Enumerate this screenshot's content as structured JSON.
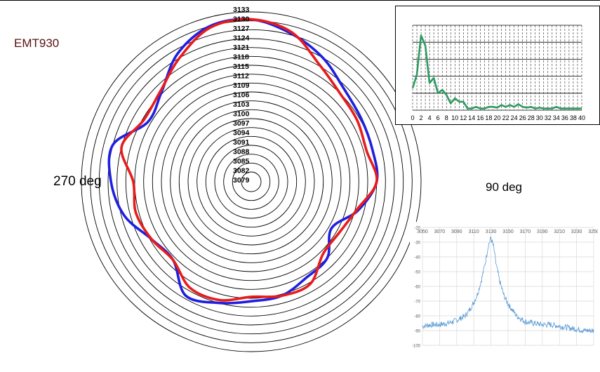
{
  "labels": {
    "model": "EMT930",
    "left_angle": "270 deg",
    "right_angle": "90 deg"
  },
  "colors": {
    "series_blue": "#1f1fe0",
    "series_red": "#e81c1c",
    "inset_top_line": "#2e9a62",
    "inset_bottom_line": "#5b9bd5"
  },
  "chart_data": [
    {
      "type": "line",
      "subtype": "polar",
      "ring_labels": [
        "3133",
        "3130",
        "3127",
        "3124",
        "3121",
        "3118",
        "3115",
        "3112",
        "3109",
        "3106",
        "3103",
        "3100",
        "3097",
        "3094",
        "3091",
        "3088",
        "3085",
        "3082",
        "3079"
      ],
      "r_range": [
        3079,
        3133
      ],
      "angle_labels": [
        {
          "text": "270 deg",
          "angle_deg": 270
        },
        {
          "text": "90 deg",
          "angle_deg": 90
        }
      ],
      "grid": true,
      "series": [
        {
          "color": "#1f1fe0",
          "angle_deg": [
            0,
            15,
            30,
            45,
            60,
            75,
            90,
            105,
            120,
            135,
            150,
            165,
            180,
            195,
            210,
            225,
            240,
            255,
            270,
            285,
            300,
            315,
            330,
            345
          ],
          "r": [
            3130.5,
            3127.5,
            3124,
            3120,
            3118.5,
            3118,
            3118,
            3113,
            3107,
            3112,
            3113,
            3115.5,
            3116,
            3118,
            3120,
            3113,
            3114.5,
            3120,
            3123,
            3124,
            3116,
            3118.5,
            3125.5,
            3130
          ]
        },
        {
          "color": "#e81c1c",
          "angle_deg": [
            0,
            15,
            30,
            45,
            60,
            75,
            90,
            105,
            120,
            135,
            150,
            165,
            180,
            195,
            210,
            225,
            240,
            255,
            270,
            285,
            300,
            315,
            330,
            345
          ],
          "r": [
            3130.5,
            3128,
            3121.5,
            3118,
            3117,
            3116,
            3118,
            3112.5,
            3110,
            3110,
            3115.5,
            3115.5,
            3114.5,
            3117,
            3117,
            3113,
            3114.5,
            3116,
            3115.5,
            3121,
            3117.5,
            3119,
            3124,
            3129.5
          ]
        }
      ]
    },
    {
      "type": "line",
      "x_ticks": [
        "0",
        "2",
        "4",
        "6",
        "8",
        "10",
        "12",
        "14",
        "16",
        "18",
        "20",
        "22",
        "24",
        "26",
        "28",
        "30",
        "32",
        "34",
        "36",
        "38",
        "40"
      ],
      "xlim": [
        0,
        40
      ],
      "ylim": [
        0,
        5
      ],
      "grid": true,
      "series": [
        {
          "color": "#2e9a62",
          "x": [
            0,
            1,
            2,
            3,
            4,
            5,
            6,
            7,
            8,
            9,
            10,
            11,
            12,
            13,
            14,
            15,
            16,
            17,
            18,
            19,
            20,
            21,
            22,
            23,
            24,
            25,
            26,
            27,
            28,
            29,
            30,
            31,
            32,
            33,
            34,
            35,
            36,
            37,
            38,
            39,
            40
          ],
          "y": [
            1.3,
            2.1,
            4.4,
            3.8,
            1.6,
            1.9,
            1.0,
            1.2,
            0.9,
            0.4,
            0.7,
            0.5,
            0.5,
            0.1,
            0.1,
            0.2,
            0.1,
            0.1,
            0.2,
            0.2,
            0.15,
            0.3,
            0.2,
            0.3,
            0.2,
            0.35,
            0.2,
            0.15,
            0.2,
            0.1,
            0.15,
            0.1,
            0.1,
            0.1,
            0.2,
            0.1,
            0.1,
            0.1,
            0.1,
            0.1,
            0.1
          ]
        }
      ]
    },
    {
      "type": "line",
      "x_ticks": [
        "3050",
        "3070",
        "3090",
        "3110",
        "3130",
        "3150",
        "3170",
        "3190",
        "3210",
        "3230",
        "3250"
      ],
      "y_ticks": [
        "-20",
        "-30",
        "-40",
        "-50",
        "-60",
        "-70",
        "-80",
        "-90",
        "-100"
      ],
      "xlim": [
        3050,
        3250
      ],
      "ylim": [
        -100,
        -20
      ],
      "grid": true,
      "series": [
        {
          "color": "#5b9bd5",
          "x": [
            3050,
            3060,
            3070,
            3080,
            3090,
            3100,
            3105,
            3110,
            3115,
            3120,
            3124,
            3127,
            3130,
            3133,
            3136,
            3140,
            3145,
            3150,
            3160,
            3170,
            3180,
            3190,
            3200,
            3210,
            3220,
            3230,
            3240,
            3250
          ],
          "y": [
            -87,
            -86,
            -86,
            -85,
            -83,
            -80,
            -76,
            -71,
            -64,
            -53,
            -42,
            -32,
            -27,
            -33,
            -45,
            -56,
            -66,
            -72,
            -80,
            -84,
            -85,
            -86,
            -86,
            -87,
            -88,
            -89,
            -90,
            -90
          ]
        }
      ]
    }
  ]
}
